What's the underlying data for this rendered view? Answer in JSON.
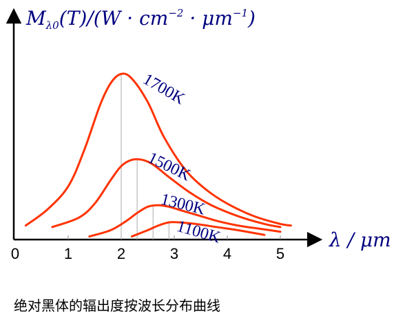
{
  "chart_data": {
    "type": "line",
    "ylabel": "M_λ0(T)/(W·cm^-2·μm^-1)",
    "ylabel_parts": {
      "sym": "M",
      "sub": "λ0",
      "rest1": "(T)/(W · cm",
      "exp1": "−2",
      "rest2": " · μm",
      "exp2": "−1",
      "rest3": ")"
    },
    "xlabel": "λ / μm",
    "xlim": [
      0,
      5.5
    ],
    "ylim": [
      0,
      1.2
    ],
    "xticks": [
      "0",
      "1",
      "2",
      "3",
      "4",
      "5"
    ],
    "tick_values": [
      0,
      1,
      2,
      3,
      4,
      5
    ],
    "grid": false,
    "line_color": "#ff3300",
    "label_color": "#000080",
    "series": [
      {
        "name": "1700K",
        "peak_x": 2.0,
        "x": [
          0.2,
          0.6,
          1.0,
          1.3,
          1.6,
          1.8,
          2.0,
          2.2,
          2.5,
          2.8,
          3.2,
          3.6,
          4.0,
          4.5,
          5.0,
          5.2
        ],
        "y": [
          0.09,
          0.19,
          0.34,
          0.57,
          0.86,
          1.0,
          1.06,
          1.03,
          0.88,
          0.66,
          0.45,
          0.32,
          0.23,
          0.15,
          0.1,
          0.09
        ]
      },
      {
        "name": "1500K",
        "peak_x": 2.3,
        "x": [
          0.7,
          1.2,
          1.5,
          1.8,
          2.0,
          2.2,
          2.4,
          2.6,
          2.9,
          3.3,
          3.7,
          4.2,
          4.7,
          5.0
        ],
        "y": [
          0.08,
          0.14,
          0.23,
          0.38,
          0.47,
          0.51,
          0.51,
          0.48,
          0.4,
          0.3,
          0.22,
          0.15,
          0.1,
          0.08
        ]
      },
      {
        "name": "1300K",
        "peak_x": 2.6,
        "x": [
          1.4,
          1.8,
          2.1,
          2.3,
          2.5,
          2.7,
          2.9,
          3.1,
          3.4,
          3.8,
          4.2,
          4.6,
          5.0
        ],
        "y": [
          0.02,
          0.06,
          0.12,
          0.17,
          0.21,
          0.22,
          0.21,
          0.19,
          0.16,
          0.12,
          0.09,
          0.07,
          0.05
        ]
      },
      {
        "name": "1100K",
        "peak_x": 2.9,
        "x": [
          2.2,
          2.5,
          2.7,
          2.9,
          3.1,
          3.4,
          3.8,
          4.2,
          4.7
        ],
        "y": [
          0.02,
          0.06,
          0.09,
          0.11,
          0.11,
          0.1,
          0.08,
          0.06,
          0.03
        ]
      }
    ]
  },
  "caption": "绝对黑体的辐出度按波长分布曲线"
}
